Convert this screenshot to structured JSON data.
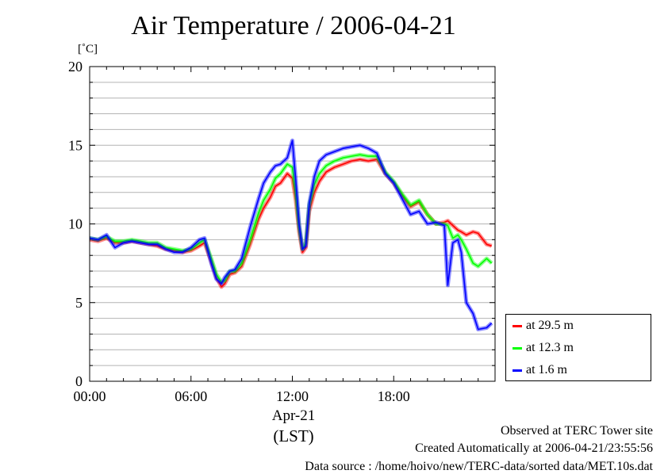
{
  "chart_data": {
    "type": "line",
    "title": "Air Temperature / 2006-04-21",
    "ylabel": "[˚C]",
    "ylim": [
      0,
      20
    ],
    "yticks": [
      "0",
      "5",
      "10",
      "15",
      "20"
    ],
    "xlim": [
      0,
      24
    ],
    "xticks": [
      {
        "value": 0,
        "label": "00:00"
      },
      {
        "value": 6,
        "label": "06:00"
      },
      {
        "value": 12,
        "label": "12:00"
      },
      {
        "value": 18,
        "label": "18:00"
      }
    ],
    "date_label": "Apr-21",
    "time_label": "(LST)",
    "grid": true,
    "legend_position": "right-bottom",
    "x": [
      0,
      0.5,
      1,
      1.5,
      2,
      2.5,
      3,
      3.5,
      4,
      4.5,
      5,
      5.5,
      6,
      6.5,
      6.8,
      7.2,
      7.5,
      7.8,
      8,
      8.3,
      8.6,
      9,
      9.5,
      10,
      10.3,
      10.7,
      11,
      11.3,
      11.7,
      12,
      12.2,
      12.4,
      12.6,
      12.8,
      13,
      13.3,
      13.6,
      14,
      14.5,
      15,
      15.5,
      16,
      16.5,
      17,
      17.5,
      18,
      18.5,
      19,
      19.5,
      20,
      20.5,
      21,
      21.2,
      21.5,
      21.8,
      22,
      22.3,
      22.7,
      23,
      23.5,
      23.8
    ],
    "series": [
      {
        "name": "at 29.5 m",
        "color": "#ff0000",
        "values": [
          9.0,
          8.9,
          9.1,
          8.8,
          8.8,
          8.9,
          8.8,
          8.7,
          8.6,
          8.4,
          8.3,
          8.2,
          8.3,
          8.6,
          8.8,
          7.6,
          6.6,
          6.0,
          6.2,
          6.8,
          6.9,
          7.3,
          8.7,
          10.3,
          11.0,
          11.7,
          12.4,
          12.6,
          13.2,
          12.9,
          11.5,
          9.5,
          8.2,
          8.5,
          10.8,
          12.0,
          12.7,
          13.3,
          13.6,
          13.8,
          14.0,
          14.1,
          14.0,
          14.1,
          13.2,
          12.6,
          11.8,
          11.1,
          11.4,
          10.6,
          10.0,
          10.1,
          10.2,
          9.9,
          9.6,
          9.5,
          9.3,
          9.5,
          9.4,
          8.7,
          8.6
        ]
      },
      {
        "name": "at 12.3 m",
        "color": "#00ff00",
        "values": [
          9.1,
          9.0,
          9.2,
          8.9,
          8.9,
          9.0,
          8.9,
          8.8,
          8.8,
          8.5,
          8.4,
          8.3,
          8.4,
          8.8,
          9.0,
          7.8,
          6.8,
          6.3,
          6.4,
          7.0,
          7.0,
          7.5,
          9.0,
          10.7,
          11.5,
          12.2,
          12.9,
          13.2,
          13.8,
          13.6,
          12.0,
          9.8,
          8.4,
          8.8,
          11.2,
          12.5,
          13.2,
          13.7,
          14.0,
          14.2,
          14.3,
          14.4,
          14.3,
          14.3,
          13.3,
          12.7,
          11.9,
          11.2,
          11.5,
          10.6,
          10.0,
          10.0,
          9.9,
          9.1,
          9.3,
          9.0,
          8.4,
          7.5,
          7.3,
          7.8,
          7.5
        ]
      },
      {
        "name": "at 1.6 m",
        "color": "#0000ff",
        "values": [
          9.1,
          9.0,
          9.3,
          8.5,
          8.8,
          8.9,
          8.8,
          8.7,
          8.7,
          8.4,
          8.2,
          8.2,
          8.5,
          9.0,
          9.1,
          7.5,
          6.5,
          6.2,
          6.6,
          7.0,
          7.1,
          7.8,
          9.8,
          11.6,
          12.6,
          13.3,
          13.7,
          13.8,
          14.2,
          15.3,
          12.8,
          10.0,
          8.4,
          8.6,
          11.3,
          13.0,
          14.0,
          14.4,
          14.6,
          14.8,
          14.9,
          15.0,
          14.8,
          14.5,
          13.2,
          12.6,
          11.6,
          10.6,
          10.8,
          10.0,
          10.1,
          9.9,
          6.1,
          8.8,
          9.0,
          8.2,
          5.0,
          4.3,
          3.3,
          3.4,
          3.7
        ]
      }
    ]
  },
  "footer": {
    "line1": "Observed at TERC Tower site",
    "line2": "Created Automatically at 2006-04-21/23:55:56",
    "line3": "Data source : /home/hoivo/new/TERC-data/sorted  data/MET.10s.dat"
  }
}
